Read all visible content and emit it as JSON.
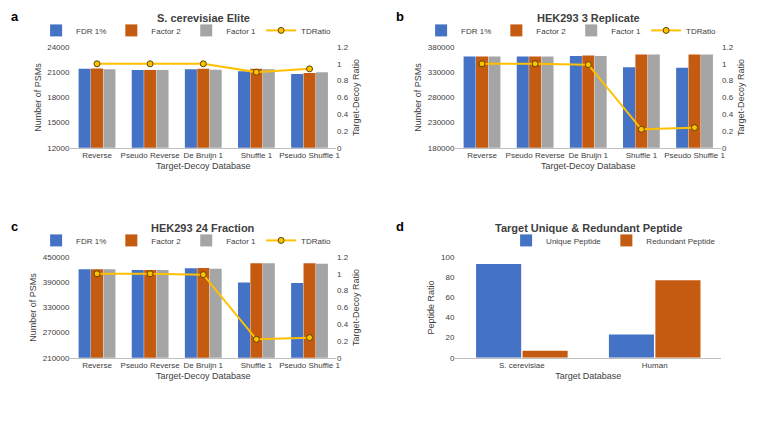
{
  "chart_data": [
    {
      "type": "bar",
      "annotations": [
        "a"
      ],
      "title": "S. cerevisiae Elite",
      "x_label": "Target-Decoy Database",
      "y_label": "Number of PSMs",
      "y2_label": "Target-Decoy Ratio",
      "categories": [
        "Reverse",
        "Pseudo Reverse",
        "De Bruijn 1",
        "Shuffle 1",
        "Pseudo Shuffle 1"
      ],
      "series": [
        {
          "name": "FDR 1%",
          "color": "#4472c4",
          "values": [
            21400,
            21250,
            21350,
            21100,
            20800
          ]
        },
        {
          "name": "Factor 2",
          "color": "#c55a11",
          "values": [
            21450,
            21250,
            21400,
            21400,
            20900
          ]
        },
        {
          "name": "Factor 1",
          "color": "#a5a5a5",
          "values": [
            21350,
            21250,
            21300,
            21350,
            21000
          ]
        },
        {
          "name": "TDRatio",
          "type": "line",
          "axis": "y2",
          "color": "#ffc000",
          "marker": "circle",
          "values": [
            1,
            1,
            1,
            0.9,
            0.94
          ]
        }
      ],
      "ylim": [
        12000,
        24000
      ],
      "yticks": [
        12000,
        15000,
        18000,
        21000,
        24000
      ],
      "y2lim": [
        0,
        1.2
      ],
      "y2ticks": [
        0,
        0.2,
        0.4,
        0.6,
        0.8,
        1,
        1.2
      ],
      "legend": "top right",
      "grid": false
    },
    {
      "type": "bar",
      "annotations": [
        "b"
      ],
      "title": "HEK293 3 Replicate",
      "x_label": "Target-Decoy Database",
      "y_label": "Number of PSMs",
      "y2_label": "Target-Decoy Ratio",
      "categories": [
        "Reverse",
        "Pseudo Reverse",
        "De Bruijn 1",
        "Shuffle 1",
        "Pseudo Shuffle 1"
      ],
      "series": [
        {
          "name": "FDR 1%",
          "color": "#4472c4",
          "values": [
            361000,
            361000,
            362000,
            340000,
            339000
          ]
        },
        {
          "name": "Factor 2",
          "color": "#c55a11",
          "values": [
            361000,
            361000,
            363000,
            365000,
            365000
          ]
        },
        {
          "name": "Factor 1",
          "color": "#a5a5a5",
          "values": [
            361000,
            361000,
            362000,
            365000,
            365000
          ]
        },
        {
          "name": "TDRatio",
          "type": "line",
          "axis": "y2",
          "color": "#ffc000",
          "marker": "circle",
          "values": [
            1,
            1,
            0.99,
            0.22,
            0.24
          ]
        }
      ],
      "ylim": [
        180000,
        380000
      ],
      "yticks": [
        180000,
        230000,
        280000,
        330000,
        380000
      ],
      "y2lim": [
        0,
        1.2
      ],
      "y2ticks": [
        0,
        0.2,
        0.4,
        0.6,
        0.8,
        1,
        1.2
      ],
      "legend": "top right",
      "grid": false
    },
    {
      "type": "bar",
      "annotations": [
        "c"
      ],
      "title": "HEK293 24 Fraction",
      "x_label": "Target-Decoy Database",
      "y_label": "Number of PSMs",
      "y2_label": "Target-Decoy Ratio",
      "categories": [
        "Reverse",
        "Pseudo Reverse",
        "De Bruijn 1",
        "Shuffle 1",
        "Pseudo Shuffle 1"
      ],
      "series": [
        {
          "name": "FDR 1%",
          "color": "#4472c4",
          "values": [
            421000,
            419000,
            423000,
            389000,
            388000
          ]
        },
        {
          "name": "Factor 2",
          "color": "#c55a11",
          "values": [
            421000,
            419000,
            424000,
            435000,
            435000
          ]
        },
        {
          "name": "Factor 1",
          "color": "#a5a5a5",
          "values": [
            421000,
            419000,
            422000,
            435000,
            434000
          ]
        },
        {
          "name": "TDRatio",
          "type": "line",
          "axis": "y2",
          "color": "#ffc000",
          "marker": "circle",
          "values": [
            1,
            1,
            0.99,
            0.22,
            0.24
          ]
        }
      ],
      "ylim": [
        210000,
        450000
      ],
      "yticks": [
        210000,
        270000,
        330000,
        390000,
        450000
      ],
      "y2lim": [
        0,
        1.2
      ],
      "y2ticks": [
        0,
        0.2,
        0.4,
        0.6,
        0.8,
        1,
        1.2
      ],
      "legend": "top right",
      "grid": false
    },
    {
      "type": "bar",
      "annotations": [
        "d"
      ],
      "title": "Target Unique & Redundant Peptide",
      "x_label": "Target Database",
      "y_label": "Peptide Ratio",
      "categories": [
        "S. cerevisiae",
        "Human"
      ],
      "series": [
        {
          "name": "Unique Peptide",
          "color": "#4472c4",
          "values": [
            93,
            23
          ]
        },
        {
          "name": "Redundant Peptide",
          "color": "#c55a11",
          "values": [
            7,
            77
          ]
        }
      ],
      "ylim": [
        0,
        100
      ],
      "yticks": [
        0,
        20,
        40,
        60,
        80,
        100
      ],
      "legend": "top right",
      "grid": false
    }
  ]
}
